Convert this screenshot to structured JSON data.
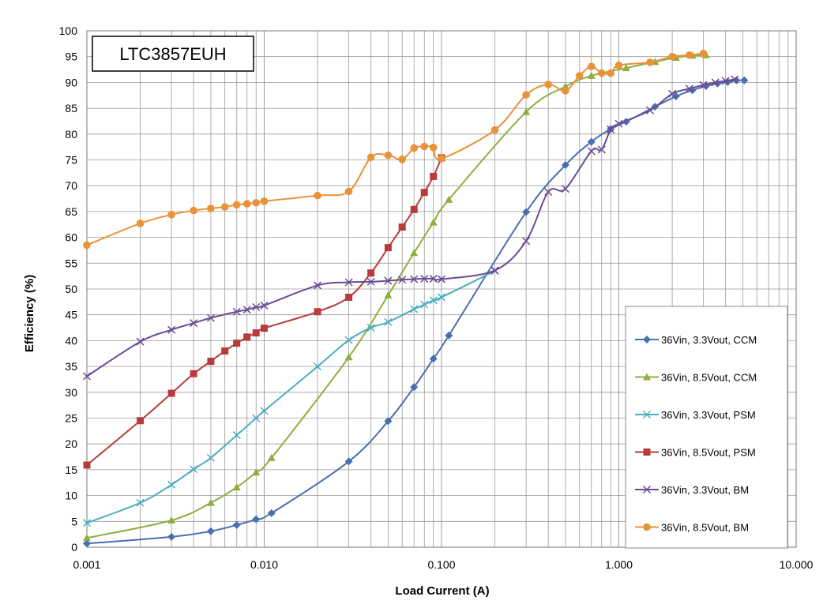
{
  "chart_data": {
    "type": "line",
    "title": "LTC3857EUH",
    "xlabel": "Load Current (A)",
    "ylabel": "Efficiency (%)",
    "xscale": "log",
    "xlim": [
      0.001,
      10
    ],
    "ylim": [
      0,
      100
    ],
    "xticks": [
      "0.001",
      "0.010",
      "0.100",
      "1.000",
      "10.000"
    ],
    "yticks": [
      "0",
      "5",
      "10",
      "15",
      "20",
      "25",
      "30",
      "35",
      "40",
      "45",
      "50",
      "55",
      "60",
      "65",
      "70",
      "75",
      "80",
      "85",
      "90",
      "95",
      "100"
    ],
    "grid": true,
    "legend_position": "right",
    "series": [
      {
        "name": "36Vin, 3.3Vout, CCM",
        "color": "#4a6fb0",
        "marker": "diamond",
        "points": [
          [
            0.001,
            0.7
          ],
          [
            0.003,
            2.0
          ],
          [
            0.005,
            3.1
          ],
          [
            0.007,
            4.3
          ],
          [
            0.009,
            5.4
          ],
          [
            0.011,
            6.6
          ],
          [
            0.03,
            16.6
          ],
          [
            0.05,
            24.4
          ],
          [
            0.07,
            31.0
          ],
          [
            0.09,
            36.5
          ],
          [
            0.11,
            41.0
          ],
          [
            0.3,
            64.9
          ],
          [
            0.5,
            74.0
          ],
          [
            0.7,
            78.5
          ],
          [
            0.9,
            81.0
          ],
          [
            1.1,
            82.4
          ],
          [
            1.6,
            85.3
          ],
          [
            2.1,
            87.3
          ],
          [
            2.6,
            88.5
          ],
          [
            3.1,
            89.3
          ],
          [
            3.6,
            89.8
          ],
          [
            4.1,
            90.1
          ],
          [
            4.6,
            90.4
          ],
          [
            5.1,
            90.4
          ]
        ]
      },
      {
        "name": "36Vin, 8.5Vout, CCM",
        "color": "#8fae3f",
        "marker": "triangle",
        "points": [
          [
            0.001,
            1.8
          ],
          [
            0.003,
            5.2
          ],
          [
            0.005,
            8.6
          ],
          [
            0.007,
            11.6
          ],
          [
            0.009,
            14.5
          ],
          [
            0.011,
            17.3
          ],
          [
            0.03,
            36.8
          ],
          [
            0.05,
            48.8
          ],
          [
            0.07,
            57.0
          ],
          [
            0.09,
            62.9
          ],
          [
            0.11,
            67.3
          ],
          [
            0.3,
            84.3
          ],
          [
            0.5,
            89.2
          ],
          [
            0.7,
            91.3
          ],
          [
            1.1,
            92.8
          ],
          [
            1.6,
            94.0
          ],
          [
            2.1,
            94.8
          ],
          [
            2.6,
            95.2
          ],
          [
            3.1,
            95.3
          ]
        ]
      },
      {
        "name": "36Vin, 3.3Vout, PSM",
        "color": "#4aaec2",
        "marker": "x",
        "points": [
          [
            0.001,
            4.7
          ],
          [
            0.002,
            8.6
          ],
          [
            0.003,
            12.1
          ],
          [
            0.004,
            15.1
          ],
          [
            0.005,
            17.3
          ],
          [
            0.007,
            21.7
          ],
          [
            0.009,
            25.0
          ],
          [
            0.01,
            26.4
          ],
          [
            0.02,
            35.0
          ],
          [
            0.03,
            40.1
          ],
          [
            0.04,
            42.5
          ],
          [
            0.05,
            43.6
          ],
          [
            0.07,
            46.1
          ],
          [
            0.08,
            47.0
          ],
          [
            0.09,
            47.8
          ],
          [
            0.1,
            48.4
          ],
          [
            0.2,
            53.5
          ]
        ]
      },
      {
        "name": "36Vin, 8.5Vout, PSM",
        "color": "#b83a3a",
        "marker": "square",
        "points": [
          [
            0.001,
            15.9
          ],
          [
            0.002,
            24.5
          ],
          [
            0.003,
            29.8
          ],
          [
            0.004,
            33.6
          ],
          [
            0.005,
            36.0
          ],
          [
            0.006,
            38.0
          ],
          [
            0.007,
            39.5
          ],
          [
            0.008,
            40.7
          ],
          [
            0.009,
            41.5
          ],
          [
            0.01,
            42.4
          ],
          [
            0.02,
            45.6
          ],
          [
            0.03,
            48.4
          ],
          [
            0.04,
            53.1
          ],
          [
            0.05,
            58.0
          ],
          [
            0.06,
            62.0
          ],
          [
            0.07,
            65.4
          ],
          [
            0.08,
            68.7
          ],
          [
            0.09,
            71.8
          ],
          [
            0.1,
            75.4
          ]
        ]
      },
      {
        "name": "36Vin, 3.3Vout, BM",
        "color": "#6a4c95",
        "marker": "x",
        "points": [
          [
            0.001,
            33.1
          ],
          [
            0.002,
            39.8
          ],
          [
            0.003,
            42.1
          ],
          [
            0.004,
            43.4
          ],
          [
            0.005,
            44.4
          ],
          [
            0.007,
            45.6
          ],
          [
            0.008,
            46.0
          ],
          [
            0.009,
            46.5
          ],
          [
            0.01,
            46.8
          ],
          [
            0.02,
            50.7
          ],
          [
            0.03,
            51.3
          ],
          [
            0.04,
            51.4
          ],
          [
            0.05,
            51.6
          ],
          [
            0.06,
            51.8
          ],
          [
            0.07,
            51.9
          ],
          [
            0.08,
            52.0
          ],
          [
            0.09,
            52.0
          ],
          [
            0.1,
            51.9
          ],
          [
            0.2,
            53.6
          ],
          [
            0.3,
            59.3
          ],
          [
            0.4,
            68.8
          ],
          [
            0.5,
            69.4
          ],
          [
            0.7,
            76.7
          ],
          [
            0.8,
            77.0
          ],
          [
            0.9,
            80.9
          ],
          [
            1.0,
            82.0
          ],
          [
            1.5,
            84.6
          ],
          [
            2.0,
            87.8
          ],
          [
            2.5,
            88.8
          ],
          [
            3.0,
            89.5
          ],
          [
            3.5,
            90.0
          ],
          [
            4.0,
            90.3
          ],
          [
            4.5,
            90.6
          ]
        ]
      },
      {
        "name": "36Vin, 8.5Vout, BM",
        "color": "#e8923a",
        "marker": "circle",
        "points": [
          [
            0.001,
            58.5
          ],
          [
            0.002,
            62.7
          ],
          [
            0.003,
            64.4
          ],
          [
            0.004,
            65.2
          ],
          [
            0.005,
            65.6
          ],
          [
            0.006,
            65.9
          ],
          [
            0.007,
            66.3
          ],
          [
            0.008,
            66.5
          ],
          [
            0.009,
            66.7
          ],
          [
            0.01,
            67.0
          ],
          [
            0.02,
            68.1
          ],
          [
            0.03,
            68.9
          ],
          [
            0.04,
            75.5
          ],
          [
            0.05,
            75.9
          ],
          [
            0.06,
            75.1
          ],
          [
            0.07,
            77.3
          ],
          [
            0.08,
            77.6
          ],
          [
            0.09,
            77.4
          ],
          [
            0.1,
            75.3
          ],
          [
            0.2,
            80.8
          ],
          [
            0.3,
            87.6
          ],
          [
            0.4,
            89.6
          ],
          [
            0.5,
            88.4
          ],
          [
            0.6,
            91.3
          ],
          [
            0.7,
            93.1
          ],
          [
            0.8,
            91.8
          ],
          [
            0.9,
            91.8
          ],
          [
            1.0,
            93.3
          ],
          [
            1.5,
            93.9
          ],
          [
            2.0,
            95.0
          ],
          [
            2.5,
            95.3
          ],
          [
            3.0,
            95.6
          ]
        ]
      }
    ]
  }
}
